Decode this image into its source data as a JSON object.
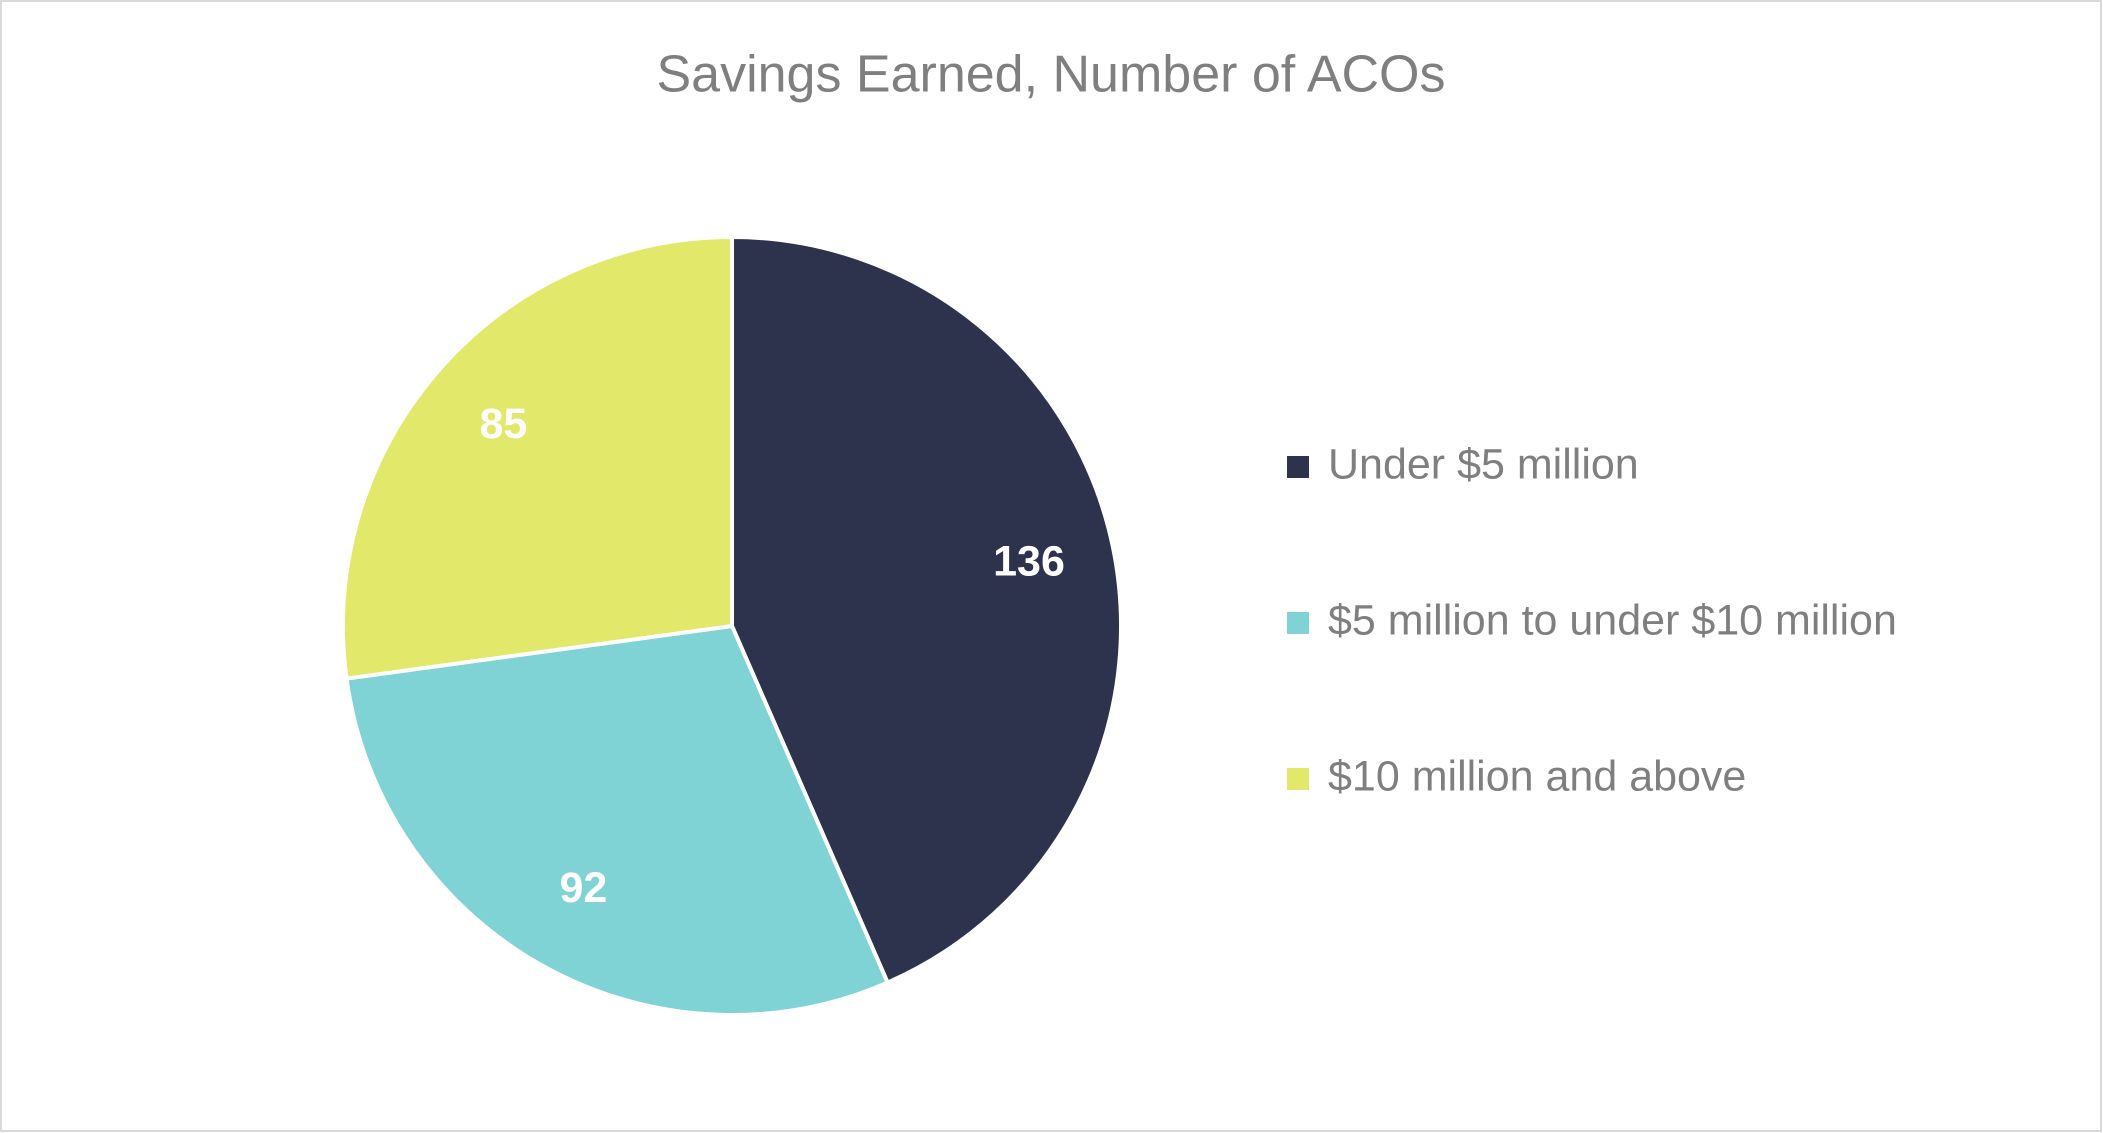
{
  "chart_data": {
    "type": "pie",
    "title": "Savings Earned, Number of ACOs",
    "categories": [
      "Under $5 million",
      "$5 million to under $10 million",
      "$10 million and above"
    ],
    "values": [
      136,
      92,
      85
    ],
    "colors": [
      "#2e334d",
      "#7fd3d4",
      "#e1e86a"
    ],
    "legend": "right"
  }
}
